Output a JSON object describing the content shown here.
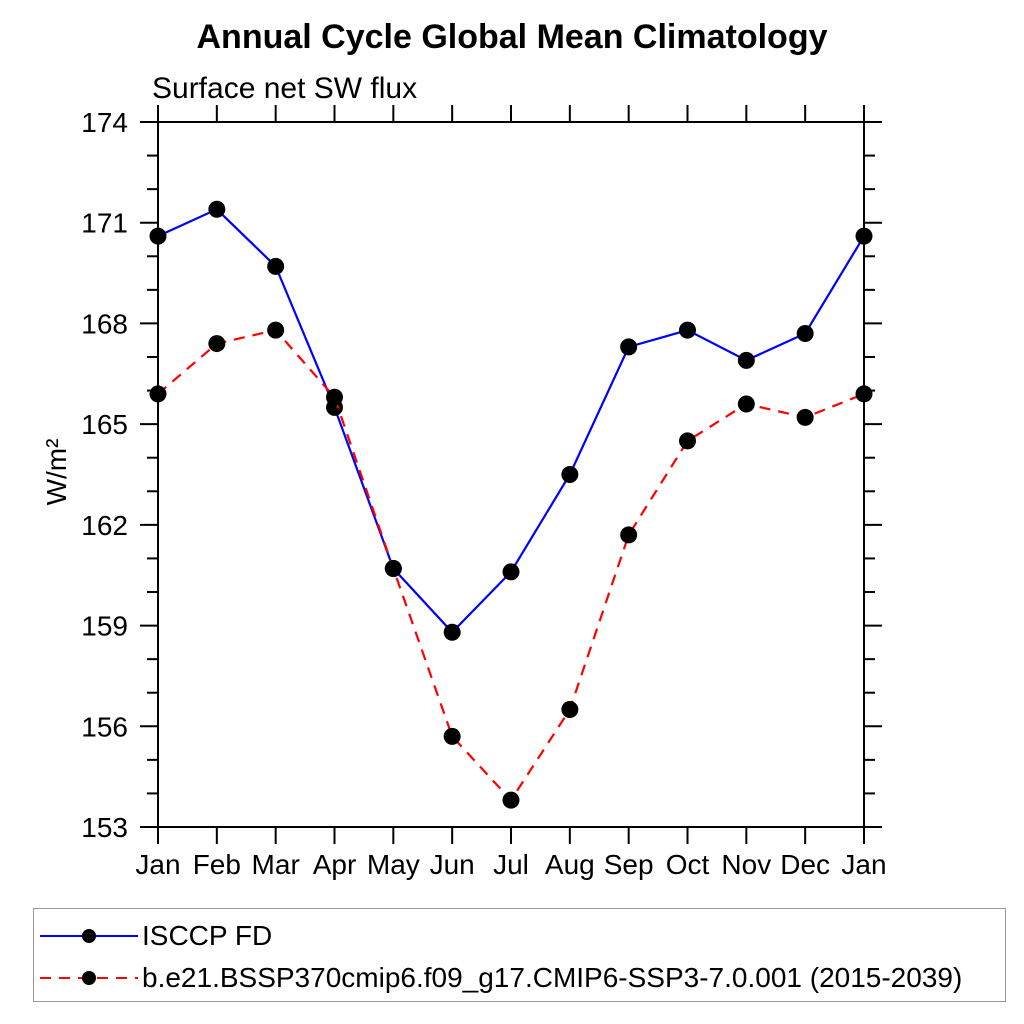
{
  "page": {
    "background": "#ffffff"
  },
  "header": {
    "title": "Annual Cycle Global Mean Climatology",
    "subtitle": "Surface net SW flux"
  },
  "chart_data": {
    "type": "line",
    "title": "Annual Cycle Global Mean Climatology",
    "subtitle": "Surface net SW flux",
    "xlabel": "",
    "ylabel": "W/m²",
    "categories": [
      "Jan",
      "Feb",
      "Mar",
      "Apr",
      "May",
      "Jun",
      "Jul",
      "Aug",
      "Sep",
      "Oct",
      "Nov",
      "Dec",
      "Jan"
    ],
    "ylim": [
      153,
      174
    ],
    "ytick_major_step": 3,
    "ytick_minor_step": 1,
    "grid": false,
    "axis_color": "#000000",
    "marker_color": "#000000",
    "legend_position": "bottom-left-box",
    "series": [
      {
        "name": "ISCCP FD",
        "color": "#0000ff",
        "line_style": "solid",
        "marker": "filled-circle",
        "values": [
          170.6,
          171.4,
          169.7,
          165.5,
          160.7,
          158.8,
          160.6,
          163.5,
          167.3,
          167.8,
          166.9,
          167.7,
          170.6
        ]
      },
      {
        "name": "b.e21.BSSP370cmip6.f09_g17.CMIP6-SSP3-7.0.001 (2015-2039)",
        "color": "#ff0000",
        "line_style": "dashed",
        "marker": "filled-circle",
        "values": [
          165.9,
          167.4,
          167.8,
          165.8,
          160.7,
          155.7,
          153.8,
          156.5,
          161.7,
          164.5,
          165.6,
          165.2,
          165.9
        ]
      }
    ]
  }
}
